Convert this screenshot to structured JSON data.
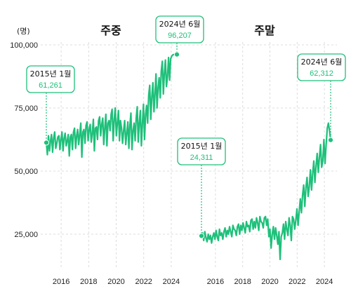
{
  "unit_label": "(명)",
  "colors": {
    "series": "#1ec07a",
    "grid": "#dcdcdc",
    "text": "#111111"
  },
  "chart_data": [
    {
      "type": "line",
      "title": "주중",
      "xlabel": "",
      "ylabel": "",
      "ylim": [
        12500,
        100000
      ],
      "xlim": [
        2015.0,
        2024.5
      ],
      "yticks": [
        25000,
        50000,
        75000,
        100000
      ],
      "ytick_labels": [
        "25,000",
        "50,000",
        "75,000",
        "100,000"
      ],
      "xticks": [
        2016,
        2018,
        2020,
        2022,
        2024
      ],
      "xtick_labels": [
        "2016",
        "2018",
        "2020",
        "2022",
        "2024"
      ],
      "grid": true,
      "series": [
        {
          "values": [
            61261,
            56500,
            64000,
            58000,
            62000,
            64500,
            57500,
            63000,
            65500,
            59000,
            61000,
            63500,
            64000,
            58500,
            62500,
            65500,
            58000,
            63000,
            65000,
            60000,
            62000,
            64500,
            56000,
            63500,
            64500,
            58500,
            65500,
            67000,
            59000,
            64000,
            66500,
            60500,
            64500,
            69000,
            55500,
            65500,
            66500,
            61000,
            68000,
            69500,
            62000,
            66500,
            68500,
            61500,
            65000,
            70500,
            58000,
            67000,
            67500,
            62500,
            70000,
            71500,
            64000,
            68500,
            71000,
            60500,
            67000,
            72500,
            60000,
            69000,
            70000,
            66000,
            72500,
            74500,
            62000,
            70500,
            75000,
            64000,
            69000,
            74000,
            62000,
            70000,
            67000,
            61000,
            66000,
            70000,
            60500,
            65000,
            69500,
            59000,
            68000,
            73000,
            58500,
            66000,
            69000,
            62000,
            71000,
            75500,
            61500,
            69000,
            74000,
            60000,
            69000,
            76500,
            62500,
            72500,
            76000,
            69000,
            80000,
            84000,
            70500,
            79500,
            85000,
            73500,
            80500,
            88500,
            75000,
            83000,
            87000,
            79000,
            89500,
            93500,
            80500,
            88500,
            94000,
            83500,
            87500,
            95000,
            86000,
            94500,
            95500,
            96000,
            96207,
            96207,
            96207,
            96207
          ]
        }
      ],
      "annotations": [
        {
          "label": "2015년 1월",
          "value_label": "61,261",
          "x": 2015.0,
          "y": 61261
        },
        {
          "label": "2024년 6월",
          "value_label": "96,207",
          "x": 2024.42,
          "y": 96207
        }
      ]
    },
    {
      "type": "line",
      "title": "주말",
      "xlabel": "",
      "ylabel": "",
      "ylim": [
        12500,
        100000
      ],
      "xlim": [
        2015.0,
        2024.5
      ],
      "yticks": [
        25000,
        50000,
        75000,
        100000
      ],
      "xticks": [
        2016,
        2018,
        2020,
        2022,
        2024
      ],
      "xtick_labels": [
        "2016",
        "2018",
        "2020",
        "2022",
        "2024"
      ],
      "grid": true,
      "series": [
        {
          "values": [
            24311,
            25500,
            22500,
            26000,
            23500,
            22000,
            25000,
            23000,
            24500,
            21500,
            24000,
            25500,
            23000,
            26500,
            24000,
            22500,
            27000,
            24500,
            25500,
            23000,
            26000,
            27500,
            24000,
            26500,
            25000,
            28000,
            26000,
            24000,
            28500,
            27000,
            26500,
            24500,
            28000,
            29000,
            25000,
            28500,
            26500,
            29500,
            27500,
            25500,
            30000,
            28000,
            28500,
            26000,
            30500,
            31000,
            27000,
            30000,
            27500,
            31500,
            29500,
            26500,
            32000,
            30000,
            29500,
            27500,
            31500,
            32000,
            28500,
            31000,
            24000,
            27000,
            19500,
            25000,
            28000,
            23000,
            27500,
            24500,
            21000,
            26000,
            15000,
            24000,
            25500,
            29000,
            23000,
            30000,
            27000,
            24500,
            31500,
            28500,
            22500,
            32000,
            31000,
            27000,
            30500,
            35000,
            28500,
            34000,
            39000,
            33500,
            40500,
            44500,
            36000,
            43500,
            47500,
            40000,
            44000,
            50500,
            42500,
            49000,
            54000,
            45500,
            52000,
            57000,
            49500,
            55500,
            60500,
            51500,
            54000,
            62500,
            53000,
            60500,
            67000,
            69000,
            66000,
            62312
          ]
        }
      ],
      "annotations": [
        {
          "label": "2015년 1월",
          "value_label": "24,311",
          "x": 2015.0,
          "y": 24311
        },
        {
          "label": "2024년 6월",
          "value_label": "62,312",
          "x": 2024.42,
          "y": 62312
        }
      ]
    }
  ]
}
